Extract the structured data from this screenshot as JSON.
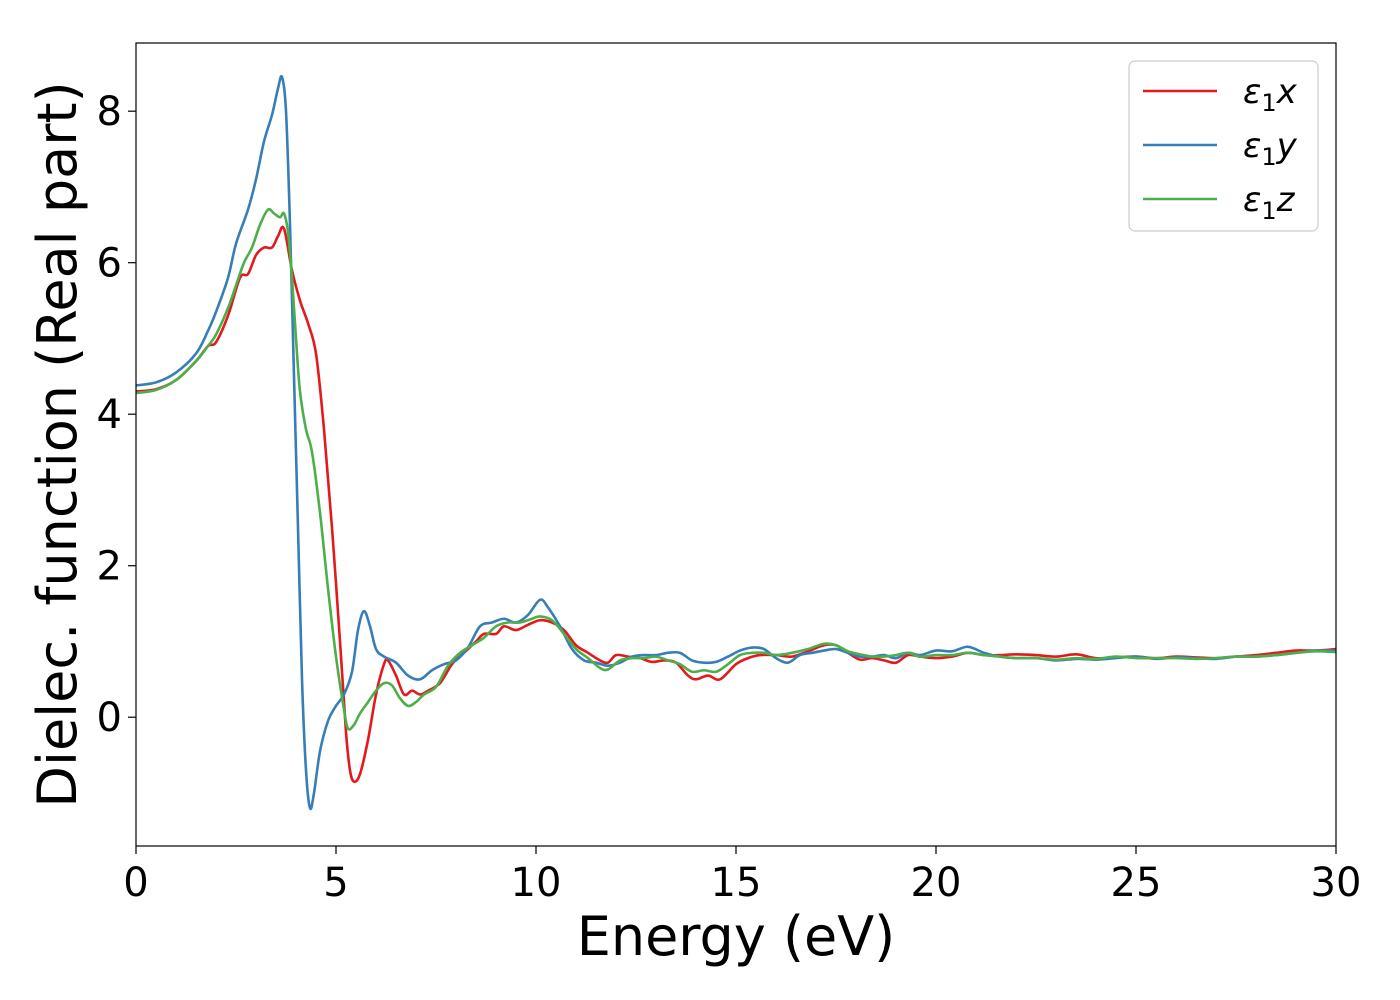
{
  "chart_data": {
    "type": "line",
    "xlabel": "Energy (eV)",
    "ylabel": "Dielec. function (Real part)",
    "xlim": [
      0,
      30
    ],
    "ylim": [
      -1.7,
      8.9
    ],
    "xticks": [
      0,
      5,
      10,
      15,
      20,
      25,
      30
    ],
    "yticks": [
      0,
      2,
      4,
      6,
      8
    ],
    "grid": false,
    "legend_position": "top-right",
    "series": [
      {
        "name": "ε1x",
        "label_base": "ε",
        "label_sub": "1",
        "label_rest": "x",
        "color": "#e31a1c",
        "points": [
          [
            0,
            4.3
          ],
          [
            0.5,
            4.33
          ],
          [
            1.0,
            4.45
          ],
          [
            1.5,
            4.7
          ],
          [
            1.8,
            4.9
          ],
          [
            2.0,
            4.95
          ],
          [
            2.3,
            5.3
          ],
          [
            2.6,
            5.8
          ],
          [
            2.8,
            5.85
          ],
          [
            3.0,
            6.1
          ],
          [
            3.2,
            6.2
          ],
          [
            3.4,
            6.2
          ],
          [
            3.55,
            6.35
          ],
          [
            3.7,
            6.45
          ],
          [
            3.9,
            5.9
          ],
          [
            4.1,
            5.5
          ],
          [
            4.3,
            5.2
          ],
          [
            4.5,
            4.8
          ],
          [
            4.7,
            3.8
          ],
          [
            4.9,
            2.5
          ],
          [
            5.1,
            1.0
          ],
          [
            5.25,
            -0.2
          ],
          [
            5.35,
            -0.7
          ],
          [
            5.45,
            -0.85
          ],
          [
            5.6,
            -0.75
          ],
          [
            5.8,
            -0.3
          ],
          [
            6.0,
            0.3
          ],
          [
            6.2,
            0.7
          ],
          [
            6.3,
            0.75
          ],
          [
            6.5,
            0.55
          ],
          [
            6.7,
            0.3
          ],
          [
            6.9,
            0.35
          ],
          [
            7.1,
            0.3
          ],
          [
            7.3,
            0.35
          ],
          [
            7.6,
            0.45
          ],
          [
            7.9,
            0.7
          ],
          [
            8.2,
            0.85
          ],
          [
            8.5,
            1.0
          ],
          [
            8.7,
            1.1
          ],
          [
            9.0,
            1.1
          ],
          [
            9.2,
            1.2
          ],
          [
            9.5,
            1.15
          ],
          [
            9.8,
            1.22
          ],
          [
            10.1,
            1.28
          ],
          [
            10.4,
            1.25
          ],
          [
            10.7,
            1.15
          ],
          [
            11.0,
            0.95
          ],
          [
            11.3,
            0.85
          ],
          [
            11.6,
            0.75
          ],
          [
            11.8,
            0.72
          ],
          [
            12.0,
            0.82
          ],
          [
            12.3,
            0.8
          ],
          [
            12.6,
            0.78
          ],
          [
            12.9,
            0.73
          ],
          [
            13.2,
            0.75
          ],
          [
            13.5,
            0.72
          ],
          [
            13.8,
            0.55
          ],
          [
            14.0,
            0.5
          ],
          [
            14.3,
            0.55
          ],
          [
            14.6,
            0.5
          ],
          [
            15.0,
            0.7
          ],
          [
            15.3,
            0.78
          ],
          [
            15.6,
            0.82
          ],
          [
            16.0,
            0.82
          ],
          [
            16.4,
            0.8
          ],
          [
            16.8,
            0.87
          ],
          [
            17.2,
            0.95
          ],
          [
            17.5,
            0.95
          ],
          [
            17.8,
            0.85
          ],
          [
            18.1,
            0.76
          ],
          [
            18.4,
            0.78
          ],
          [
            18.7,
            0.75
          ],
          [
            19.0,
            0.72
          ],
          [
            19.3,
            0.82
          ],
          [
            19.6,
            0.8
          ],
          [
            20.0,
            0.78
          ],
          [
            20.4,
            0.8
          ],
          [
            20.8,
            0.85
          ],
          [
            21.2,
            0.82
          ],
          [
            21.6,
            0.82
          ],
          [
            22.0,
            0.83
          ],
          [
            22.5,
            0.82
          ],
          [
            23.0,
            0.8
          ],
          [
            23.5,
            0.83
          ],
          [
            24.0,
            0.78
          ],
          [
            24.5,
            0.79
          ],
          [
            25.0,
            0.8
          ],
          [
            25.5,
            0.78
          ],
          [
            26.0,
            0.8
          ],
          [
            26.5,
            0.79
          ],
          [
            27.0,
            0.78
          ],
          [
            27.5,
            0.8
          ],
          [
            28.0,
            0.82
          ],
          [
            28.5,
            0.85
          ],
          [
            29.0,
            0.88
          ],
          [
            29.5,
            0.88
          ],
          [
            30.0,
            0.9
          ]
        ]
      },
      {
        "name": "ε1y",
        "label_base": "ε",
        "label_sub": "1",
        "label_rest": "y",
        "color": "#377eb8",
        "points": [
          [
            0,
            4.38
          ],
          [
            0.5,
            4.42
          ],
          [
            1.0,
            4.55
          ],
          [
            1.5,
            4.8
          ],
          [
            1.8,
            5.1
          ],
          [
            2.0,
            5.35
          ],
          [
            2.3,
            5.8
          ],
          [
            2.5,
            6.25
          ],
          [
            2.8,
            6.7
          ],
          [
            3.0,
            7.1
          ],
          [
            3.2,
            7.6
          ],
          [
            3.4,
            7.95
          ],
          [
            3.55,
            8.3
          ],
          [
            3.65,
            8.45
          ],
          [
            3.75,
            8.0
          ],
          [
            3.85,
            6.5
          ],
          [
            3.95,
            4.5
          ],
          [
            4.05,
            2.5
          ],
          [
            4.15,
            0.5
          ],
          [
            4.25,
            -0.7
          ],
          [
            4.35,
            -1.2
          ],
          [
            4.45,
            -1.0
          ],
          [
            4.6,
            -0.45
          ],
          [
            4.8,
            -0.05
          ],
          [
            5.0,
            0.15
          ],
          [
            5.2,
            0.3
          ],
          [
            5.4,
            0.6
          ],
          [
            5.55,
            1.15
          ],
          [
            5.7,
            1.4
          ],
          [
            5.85,
            1.2
          ],
          [
            6.0,
            0.9
          ],
          [
            6.2,
            0.8
          ],
          [
            6.5,
            0.72
          ],
          [
            6.8,
            0.55
          ],
          [
            7.1,
            0.5
          ],
          [
            7.4,
            0.62
          ],
          [
            7.7,
            0.7
          ],
          [
            8.0,
            0.75
          ],
          [
            8.3,
            0.92
          ],
          [
            8.6,
            1.2
          ],
          [
            8.9,
            1.25
          ],
          [
            9.2,
            1.3
          ],
          [
            9.5,
            1.25
          ],
          [
            9.8,
            1.35
          ],
          [
            10.1,
            1.55
          ],
          [
            10.3,
            1.45
          ],
          [
            10.6,
            1.2
          ],
          [
            10.9,
            0.9
          ],
          [
            11.2,
            0.75
          ],
          [
            11.5,
            0.72
          ],
          [
            11.8,
            0.68
          ],
          [
            12.1,
            0.72
          ],
          [
            12.4,
            0.8
          ],
          [
            12.7,
            0.82
          ],
          [
            13.0,
            0.82
          ],
          [
            13.3,
            0.85
          ],
          [
            13.6,
            0.85
          ],
          [
            13.9,
            0.75
          ],
          [
            14.2,
            0.72
          ],
          [
            14.5,
            0.73
          ],
          [
            14.8,
            0.8
          ],
          [
            15.1,
            0.88
          ],
          [
            15.4,
            0.92
          ],
          [
            15.7,
            0.9
          ],
          [
            16.0,
            0.78
          ],
          [
            16.3,
            0.72
          ],
          [
            16.6,
            0.82
          ],
          [
            16.9,
            0.85
          ],
          [
            17.2,
            0.88
          ],
          [
            17.5,
            0.9
          ],
          [
            17.8,
            0.85
          ],
          [
            18.1,
            0.8
          ],
          [
            18.4,
            0.8
          ],
          [
            18.7,
            0.82
          ],
          [
            19.0,
            0.78
          ],
          [
            19.3,
            0.85
          ],
          [
            19.6,
            0.82
          ],
          [
            20.0,
            0.88
          ],
          [
            20.4,
            0.87
          ],
          [
            20.8,
            0.93
          ],
          [
            21.2,
            0.85
          ],
          [
            21.6,
            0.8
          ],
          [
            22.0,
            0.78
          ],
          [
            22.5,
            0.78
          ],
          [
            23.0,
            0.75
          ],
          [
            23.5,
            0.77
          ],
          [
            24.0,
            0.76
          ],
          [
            24.5,
            0.78
          ],
          [
            25.0,
            0.8
          ],
          [
            25.5,
            0.77
          ],
          [
            26.0,
            0.79
          ],
          [
            26.5,
            0.78
          ],
          [
            27.0,
            0.77
          ],
          [
            27.5,
            0.8
          ],
          [
            28.0,
            0.8
          ],
          [
            28.5,
            0.82
          ],
          [
            29.0,
            0.85
          ],
          [
            29.5,
            0.88
          ],
          [
            30.0,
            0.88
          ]
        ]
      },
      {
        "name": "ε1z",
        "label_base": "ε",
        "label_sub": "1",
        "label_rest": "z",
        "color": "#4daf4a",
        "points": [
          [
            0,
            4.28
          ],
          [
            0.5,
            4.32
          ],
          [
            1.0,
            4.45
          ],
          [
            1.5,
            4.7
          ],
          [
            1.8,
            4.9
          ],
          [
            2.0,
            5.05
          ],
          [
            2.3,
            5.4
          ],
          [
            2.5,
            5.7
          ],
          [
            2.7,
            6.0
          ],
          [
            2.9,
            6.2
          ],
          [
            3.1,
            6.5
          ],
          [
            3.3,
            6.7
          ],
          [
            3.45,
            6.65
          ],
          [
            3.6,
            6.6
          ],
          [
            3.7,
            6.65
          ],
          [
            3.8,
            6.4
          ],
          [
            3.9,
            5.8
          ],
          [
            4.0,
            5.0
          ],
          [
            4.1,
            4.3
          ],
          [
            4.25,
            3.8
          ],
          [
            4.4,
            3.5
          ],
          [
            4.6,
            2.7
          ],
          [
            4.8,
            1.7
          ],
          [
            5.0,
            0.8
          ],
          [
            5.2,
            0.1
          ],
          [
            5.3,
            -0.15
          ],
          [
            5.45,
            -0.1
          ],
          [
            5.6,
            0.05
          ],
          [
            5.8,
            0.2
          ],
          [
            6.0,
            0.35
          ],
          [
            6.2,
            0.45
          ],
          [
            6.4,
            0.42
          ],
          [
            6.6,
            0.25
          ],
          [
            6.8,
            0.15
          ],
          [
            7.0,
            0.2
          ],
          [
            7.2,
            0.3
          ],
          [
            7.5,
            0.4
          ],
          [
            7.8,
            0.68
          ],
          [
            8.1,
            0.85
          ],
          [
            8.4,
            0.95
          ],
          [
            8.7,
            1.05
          ],
          [
            9.0,
            1.2
          ],
          [
            9.3,
            1.25
          ],
          [
            9.6,
            1.25
          ],
          [
            9.9,
            1.3
          ],
          [
            10.1,
            1.33
          ],
          [
            10.4,
            1.28
          ],
          [
            10.7,
            1.1
          ],
          [
            11.0,
            0.9
          ],
          [
            11.3,
            0.78
          ],
          [
            11.6,
            0.65
          ],
          [
            11.8,
            0.63
          ],
          [
            12.1,
            0.75
          ],
          [
            12.4,
            0.78
          ],
          [
            12.7,
            0.78
          ],
          [
            13.0,
            0.8
          ],
          [
            13.3,
            0.75
          ],
          [
            13.6,
            0.7
          ],
          [
            13.9,
            0.6
          ],
          [
            14.2,
            0.62
          ],
          [
            14.5,
            0.6
          ],
          [
            14.8,
            0.7
          ],
          [
            15.1,
            0.82
          ],
          [
            15.4,
            0.85
          ],
          [
            15.7,
            0.85
          ],
          [
            16.0,
            0.82
          ],
          [
            16.4,
            0.85
          ],
          [
            16.8,
            0.9
          ],
          [
            17.2,
            0.97
          ],
          [
            17.5,
            0.95
          ],
          [
            17.8,
            0.87
          ],
          [
            18.1,
            0.83
          ],
          [
            18.4,
            0.8
          ],
          [
            18.7,
            0.8
          ],
          [
            19.0,
            0.82
          ],
          [
            19.3,
            0.85
          ],
          [
            19.6,
            0.8
          ],
          [
            20.0,
            0.82
          ],
          [
            20.4,
            0.82
          ],
          [
            20.8,
            0.85
          ],
          [
            21.2,
            0.82
          ],
          [
            21.6,
            0.8
          ],
          [
            22.0,
            0.78
          ],
          [
            22.5,
            0.78
          ],
          [
            23.0,
            0.76
          ],
          [
            23.5,
            0.78
          ],
          [
            24.0,
            0.77
          ],
          [
            24.5,
            0.8
          ],
          [
            25.0,
            0.78
          ],
          [
            25.5,
            0.78
          ],
          [
            26.0,
            0.78
          ],
          [
            26.5,
            0.77
          ],
          [
            27.0,
            0.78
          ],
          [
            27.5,
            0.8
          ],
          [
            28.0,
            0.8
          ],
          [
            28.5,
            0.82
          ],
          [
            29.0,
            0.85
          ],
          [
            29.5,
            0.87
          ],
          [
            30.0,
            0.86
          ]
        ]
      }
    ]
  }
}
